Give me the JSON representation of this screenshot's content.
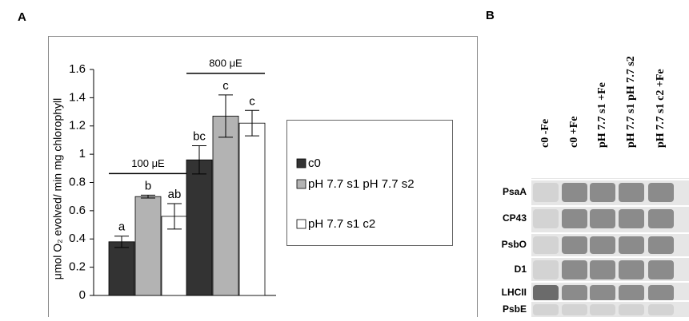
{
  "chart_data": {
    "type": "bar",
    "panel_label": "A",
    "ylabel": "μmol O₂ evolved/ min mg chlorophyll",
    "categories": [
      "100 μE",
      "800 μE"
    ],
    "series": [
      {
        "name": "c0",
        "color": "#333333",
        "values": [
          0.38,
          0.96
        ],
        "errors": [
          0.04,
          0.1
        ],
        "letters": [
          "a",
          "bc"
        ]
      },
      {
        "name": "pH 7.7 s1 pH 7.7 s2",
        "color": "#b3b3b3",
        "values": [
          0.7,
          1.27
        ],
        "errors": [
          0.01,
          0.15
        ],
        "letters": [
          "b",
          "c"
        ]
      },
      {
        "name": "pH 7.7 s1 c2",
        "color": "#ffffff",
        "values": [
          0.56,
          1.22
        ],
        "errors": [
          0.09,
          0.09
        ],
        "letters": [
          "ab",
          "c"
        ]
      }
    ],
    "ylim": [
      0,
      1.6
    ],
    "yticks": [
      0,
      0.2,
      0.4,
      0.6,
      0.8,
      1,
      1.2,
      1.4,
      1.6
    ]
  },
  "blot": {
    "panel_label": "B",
    "lanes": [
      "c0  -Fe",
      "c0  +Fe",
      "pH 7.7 s1  +Fe",
      "pH 7.7 s1 pH 7.7 s2",
      "pH 7.7 s1 c2  +Fe"
    ],
    "proteins": [
      "PsaA",
      "CP43",
      "PsbO",
      "D1",
      "LHCII",
      "PsbE"
    ]
  }
}
